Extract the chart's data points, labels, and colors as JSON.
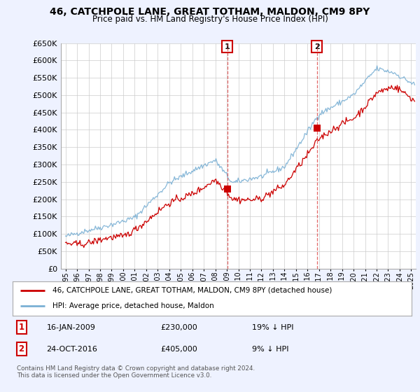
{
  "title": "46, CATCHPOLE LANE, GREAT TOTHAM, MALDON, CM9 8PY",
  "subtitle": "Price paid vs. HM Land Registry's House Price Index (HPI)",
  "ylim": [
    0,
    650000
  ],
  "yticks": [
    0,
    50000,
    100000,
    150000,
    200000,
    250000,
    300000,
    350000,
    400000,
    450000,
    500000,
    550000,
    600000,
    650000
  ],
  "price_paid_color": "#cc0000",
  "hpi_color": "#7ab0d4",
  "transaction1_date": "16-JAN-2009",
  "transaction1_price": 230000,
  "transaction1_label": "19% ↓ HPI",
  "transaction1_marker_year": 2009.04,
  "transaction2_date": "24-OCT-2016",
  "transaction2_price": 405000,
  "transaction2_label": "9% ↓ HPI",
  "transaction2_marker_year": 2016.81,
  "legend_line1": "46, CATCHPOLE LANE, GREAT TOTHAM, MALDON, CM9 8PY (detached house)",
  "legend_line2": "HPI: Average price, detached house, Maldon",
  "footer": "Contains HM Land Registry data © Crown copyright and database right 2024.\nThis data is licensed under the Open Government Licence v3.0.",
  "background_color": "#eef2ff",
  "plot_bg_color": "#ffffff",
  "grid_color": "#cccccc",
  "xlim_start": 1994.6,
  "xlim_end": 2025.4,
  "xtick_years": [
    1995,
    1996,
    1997,
    1998,
    1999,
    2000,
    2001,
    2002,
    2003,
    2004,
    2005,
    2006,
    2007,
    2008,
    2009,
    2010,
    2011,
    2012,
    2013,
    2014,
    2015,
    2016,
    2017,
    2018,
    2019,
    2020,
    2021,
    2022,
    2023,
    2024,
    2025
  ]
}
